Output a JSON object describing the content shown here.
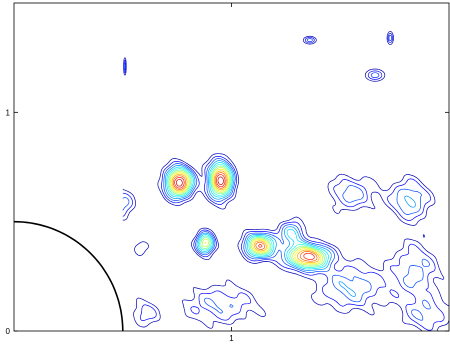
{
  "chart_data": {
    "type": "contour",
    "title": "",
    "xlabel": "",
    "ylabel": "",
    "xlim": [
      0,
      2
    ],
    "ylim": [
      0,
      1.5
    ],
    "x_ticks": [
      {
        "value": 1,
        "label": "1"
      }
    ],
    "y_ticks": [
      {
        "value": 0,
        "label": "0"
      },
      {
        "value": 1,
        "label": "1"
      }
    ],
    "grid": false,
    "colormap": "jet",
    "levels": 14,
    "data_region": {
      "x": [
        0.5,
        2.0
      ],
      "y": [
        0.0,
        0.82
      ]
    },
    "peaks": [
      {
        "x": 0.76,
        "y": 0.68,
        "amplitude": 1.0,
        "sx": 0.045,
        "sy": 0.05
      },
      {
        "x": 0.95,
        "y": 0.69,
        "amplitude": 0.98,
        "sx": 0.04,
        "sy": 0.06
      },
      {
        "x": 0.88,
        "y": 0.4,
        "amplitude": 0.72,
        "sx": 0.03,
        "sy": 0.035
      },
      {
        "x": 1.13,
        "y": 0.39,
        "amplitude": 0.85,
        "sx": 0.05,
        "sy": 0.04
      },
      {
        "x": 1.35,
        "y": 0.34,
        "amplitude": 0.92,
        "sx": 0.07,
        "sy": 0.04
      },
      {
        "x": 1.28,
        "y": 0.45,
        "amplitude": 0.42,
        "sx": 0.04,
        "sy": 0.04
      },
      {
        "x": 0.5,
        "y": 0.58,
        "amplitude": 0.3,
        "sx": 0.04,
        "sy": 0.05
      },
      {
        "x": 1.55,
        "y": 0.63,
        "amplitude": 0.3,
        "sx": 0.08,
        "sy": 0.06
      },
      {
        "x": 1.82,
        "y": 0.6,
        "amplitude": 0.35,
        "sx": 0.07,
        "sy": 0.07
      },
      {
        "x": 1.55,
        "y": 0.2,
        "amplitude": 0.32,
        "sx": 0.12,
        "sy": 0.08
      },
      {
        "x": 1.85,
        "y": 0.28,
        "amplitude": 0.28,
        "sx": 0.08,
        "sy": 0.1
      },
      {
        "x": 0.95,
        "y": 0.12,
        "amplitude": 0.26,
        "sx": 0.14,
        "sy": 0.07
      },
      {
        "x": 1.9,
        "y": 0.07,
        "amplitude": 0.25,
        "sx": 0.08,
        "sy": 0.06
      },
      {
        "x": 0.6,
        "y": 0.08,
        "amplitude": 0.22,
        "sx": 0.05,
        "sy": 0.05
      },
      {
        "x": 0.58,
        "y": 0.38,
        "amplitude": 0.2,
        "sx": 0.03,
        "sy": 0.03
      }
    ],
    "isolated_contours": [
      {
        "x": 1.36,
        "y": 1.33,
        "rx": 0.03,
        "ry": 0.018
      },
      {
        "x": 1.73,
        "y": 1.34,
        "rx": 0.015,
        "ry": 0.03
      },
      {
        "x": 1.66,
        "y": 1.17,
        "rx": 0.045,
        "ry": 0.028
      },
      {
        "x": 0.51,
        "y": 1.21,
        "rx": 0.006,
        "ry": 0.04
      }
    ],
    "arc": {
      "center": [
        0,
        0
      ],
      "radius": 0.5
    }
  }
}
